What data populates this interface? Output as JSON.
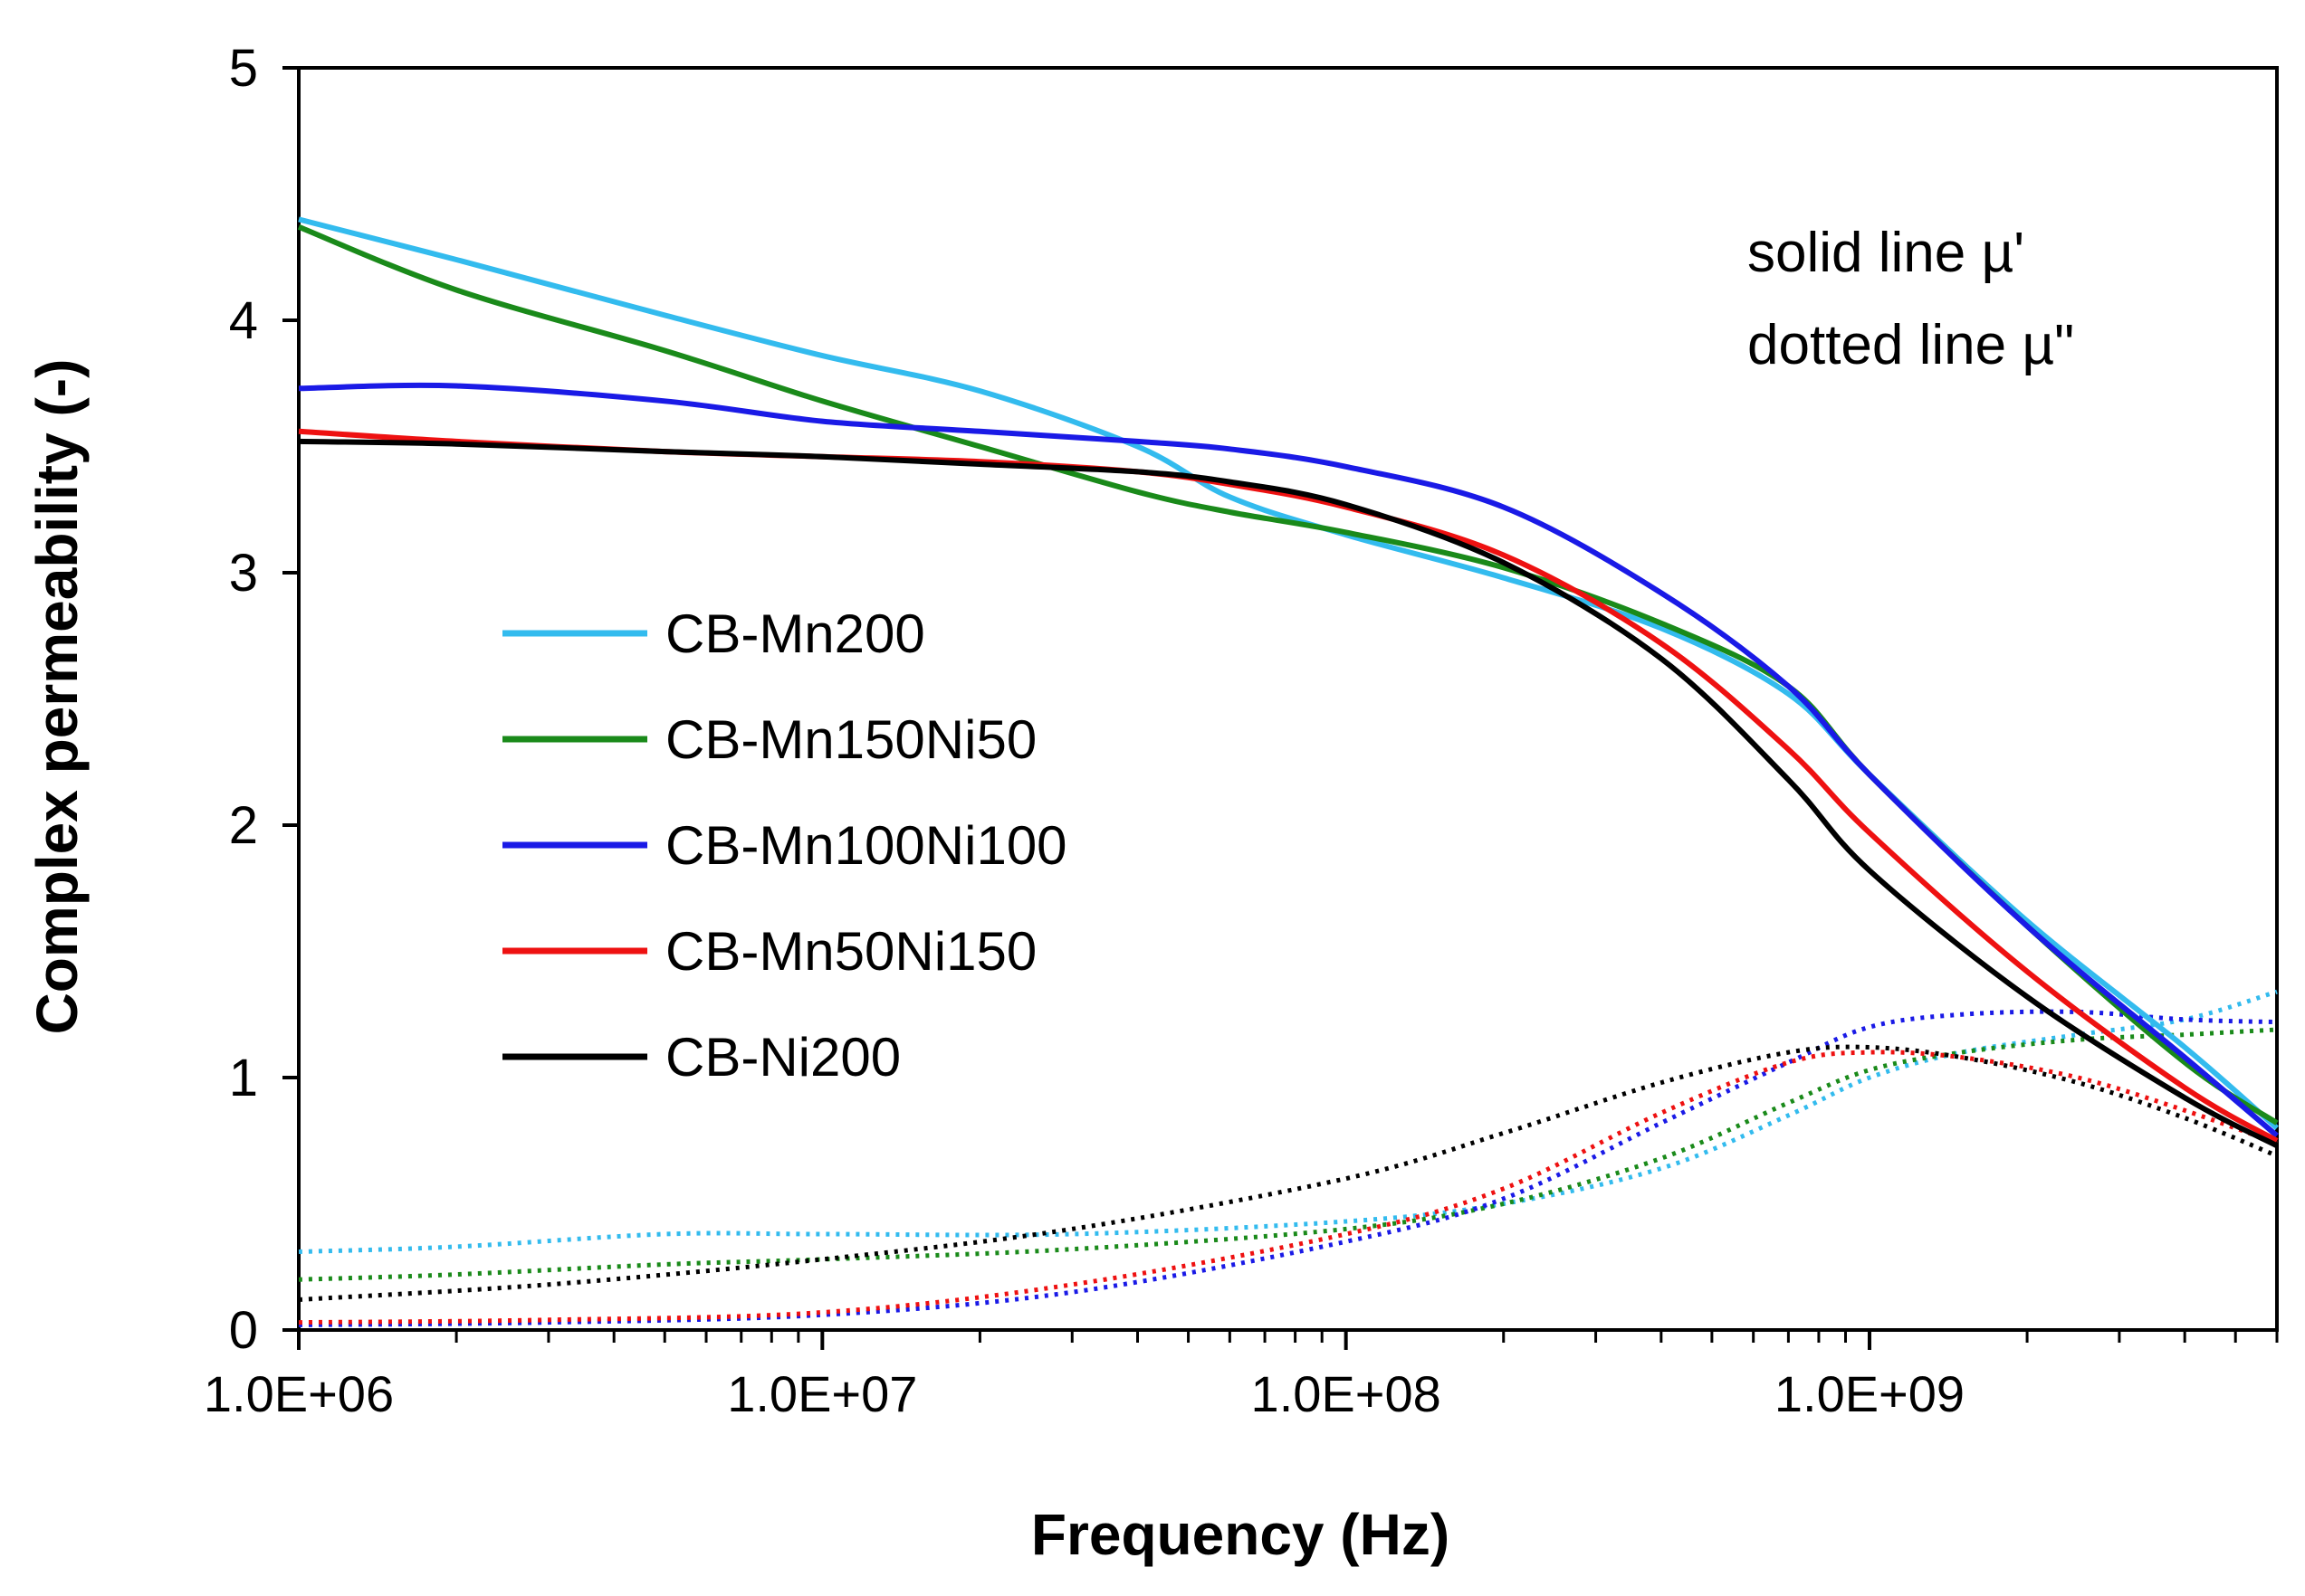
{
  "chart_data": {
    "type": "line",
    "title": "",
    "xlabel": "Frequency (Hz)",
    "ylabel": "Complex permeability (-)",
    "x_scale": "log",
    "xlim": [
      1000000,
      6000000000
    ],
    "ylim": [
      0,
      5
    ],
    "x_ticks": [
      1000000,
      10000000,
      100000000,
      1000000000
    ],
    "x_tick_labels": [
      "1.0E+06",
      "1.0E+07",
      "1.0E+08",
      "1.0E+09"
    ],
    "y_ticks": [
      0,
      1,
      2,
      3,
      4,
      5
    ],
    "y_tick_labels": [
      "0",
      "1",
      "2",
      "3",
      "4",
      "5"
    ],
    "grid": false,
    "legend_position": "center-left",
    "annotation": [
      "solid line µ'",
      "dotted line µ\""
    ],
    "series": [
      {
        "name": "CB-Mn200",
        "color": "#33BBEE",
        "mu_real": {
          "x": [
            1000000,
            2000000,
            5000000,
            10000000,
            20000000,
            40000000,
            60000000,
            100000000,
            200000000,
            400000000,
            700000000,
            1000000000,
            2000000000,
            4000000000,
            6000000000
          ],
          "y": [
            4.4,
            4.24,
            4.02,
            3.86,
            3.72,
            3.5,
            3.3,
            3.15,
            2.98,
            2.78,
            2.52,
            2.2,
            1.62,
            1.12,
            0.8
          ]
        },
        "mu_imag": {
          "x": [
            1000000,
            2000000,
            5000000,
            10000000,
            30000000,
            100000000,
            200000000,
            400000000,
            700000000,
            1000000000,
            1500000000,
            2500000000,
            4000000000,
            6000000000
          ],
          "y": [
            0.31,
            0.33,
            0.38,
            0.38,
            0.38,
            0.43,
            0.5,
            0.64,
            0.85,
            1.0,
            1.1,
            1.17,
            1.23,
            1.34
          ]
        }
      },
      {
        "name": "CB-Mn150Ni50",
        "color": "#1A8A1A",
        "mu_real": {
          "x": [
            1000000,
            2000000,
            5000000,
            10000000,
            20000000,
            40000000,
            60000000,
            100000000,
            200000000,
            400000000,
            700000000,
            1000000000,
            2000000000,
            4000000000,
            6000000000
          ],
          "y": [
            4.37,
            4.12,
            3.88,
            3.68,
            3.5,
            3.32,
            3.24,
            3.16,
            3.02,
            2.8,
            2.55,
            2.2,
            1.6,
            1.06,
            0.82
          ]
        },
        "mu_imag": {
          "x": [
            1000000,
            2000000,
            5000000,
            10000000,
            30000000,
            100000000,
            200000000,
            400000000,
            700000000,
            1000000000,
            1500000000,
            2500000000,
            4000000000,
            6000000000
          ],
          "y": [
            0.2,
            0.22,
            0.26,
            0.28,
            0.32,
            0.4,
            0.5,
            0.68,
            0.9,
            1.03,
            1.1,
            1.15,
            1.17,
            1.19
          ]
        }
      },
      {
        "name": "CB-Mn100Ni100",
        "color": "#1A1AE6",
        "mu_real": {
          "x": [
            1000000,
            2000000,
            5000000,
            10000000,
            20000000,
            40000000,
            60000000,
            100000000,
            200000000,
            400000000,
            700000000,
            1000000000,
            2000000000,
            4000000000,
            6000000000
          ],
          "y": [
            3.73,
            3.74,
            3.68,
            3.6,
            3.56,
            3.52,
            3.49,
            3.42,
            3.26,
            2.92,
            2.55,
            2.2,
            1.6,
            1.08,
            0.77
          ]
        },
        "mu_imag": {
          "x": [
            1000000,
            3000000,
            10000000,
            30000000,
            100000000,
            200000000,
            400000000,
            700000000,
            1000000000,
            1500000000,
            2500000000,
            4000000000,
            6000000000
          ],
          "y": [
            0.02,
            0.03,
            0.06,
            0.15,
            0.35,
            0.52,
            0.82,
            1.06,
            1.2,
            1.25,
            1.26,
            1.23,
            1.22
          ]
        }
      },
      {
        "name": "CB-Mn50Ni150",
        "color": "#EE1111",
        "mu_real": {
          "x": [
            1000000,
            2000000,
            5000000,
            10000000,
            20000000,
            40000000,
            60000000,
            100000000,
            200000000,
            400000000,
            700000000,
            1000000000,
            2000000000,
            4000000000,
            6000000000
          ],
          "y": [
            3.56,
            3.52,
            3.48,
            3.46,
            3.44,
            3.4,
            3.35,
            3.26,
            3.07,
            2.72,
            2.3,
            1.97,
            1.42,
            0.96,
            0.75
          ]
        },
        "mu_imag": {
          "x": [
            1000000,
            3000000,
            10000000,
            30000000,
            100000000,
            200000000,
            400000000,
            700000000,
            1000000000,
            1500000000,
            2500000000,
            4000000000,
            6000000000
          ],
          "y": [
            0.03,
            0.04,
            0.07,
            0.18,
            0.38,
            0.56,
            0.86,
            1.06,
            1.1,
            1.08,
            1.0,
            0.87,
            0.74
          ]
        }
      },
      {
        "name": "CB-Ni200",
        "color": "#000000",
        "mu_real": {
          "x": [
            1000000,
            2000000,
            5000000,
            10000000,
            20000000,
            40000000,
            60000000,
            100000000,
            200000000,
            400000000,
            700000000,
            1000000000,
            2000000000,
            4000000000,
            6000000000
          ],
          "y": [
            3.52,
            3.51,
            3.48,
            3.46,
            3.43,
            3.4,
            3.36,
            3.27,
            3.04,
            2.66,
            2.18,
            1.82,
            1.32,
            0.92,
            0.73
          ]
        },
        "mu_imag": {
          "x": [
            1000000,
            3000000,
            10000000,
            30000000,
            100000000,
            200000000,
            400000000,
            700000000,
            1000000000,
            1500000000,
            2500000000,
            4000000000,
            6000000000
          ],
          "y": [
            0.12,
            0.18,
            0.28,
            0.4,
            0.6,
            0.78,
            0.98,
            1.1,
            1.12,
            1.08,
            0.98,
            0.84,
            0.69
          ]
        }
      }
    ]
  }
}
